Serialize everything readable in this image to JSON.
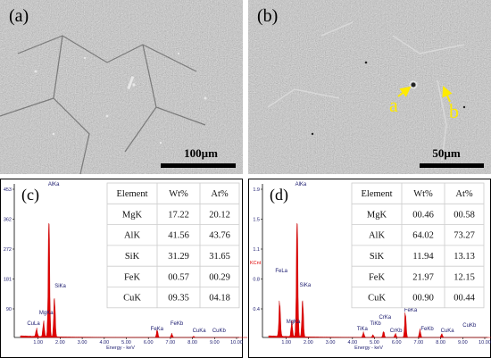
{
  "panels": [
    {
      "label": "(a)",
      "scale_bar": "100µm"
    },
    {
      "label": "(b)",
      "scale_bar": "50µm",
      "annotations": [
        "a",
        "b"
      ]
    },
    {
      "label": "(c)",
      "y_axis_ticks": [
        "453",
        "362",
        "272",
        "181",
        "90"
      ],
      "x_axis_ticks": [
        "1.00",
        "2.00",
        "3.00",
        "4.00",
        "5.00",
        "6.00",
        "7.00",
        "8.00",
        "9.00",
        "10.00"
      ],
      "x_axis_label": "Energy - keV",
      "peak_labels": [
        "AlKa",
        "SiKa",
        "MgKa",
        "CuLa",
        "FeKa",
        "FeKb",
        "CuKa",
        "CuKb"
      ],
      "table": {
        "header": [
          "Element",
          "Wt%",
          "At%"
        ],
        "rows": [
          [
            "MgK",
            "17.22",
            "20.12"
          ],
          [
            "AlK",
            "41.56",
            "43.76"
          ],
          [
            "SiK",
            "31.29",
            "31.65"
          ],
          [
            "FeK",
            "00.57",
            "00.29"
          ],
          [
            "CuK",
            "09.35",
            "04.18"
          ]
        ]
      }
    },
    {
      "label": "(d)",
      "y_axis_label": "KCnt",
      "y_axis_ticks": [
        "1.9",
        "1.5",
        "1.1",
        "0.8",
        "0.4"
      ],
      "x_axis_ticks": [
        "1.00",
        "2.00",
        "3.00",
        "4.00",
        "5.00",
        "6.00",
        "7.00",
        "8.00",
        "9.00",
        "10.00"
      ],
      "x_axis_label": "Energy - keV",
      "peak_labels": [
        "AlKa",
        "FeLa",
        "SiKa",
        "MgKa",
        "TiKa",
        "CrKa",
        "TiKb",
        "CrKb",
        "FeKa",
        "FeKb",
        "CuKa",
        "CuKb"
      ],
      "table": {
        "header": [
          "Element",
          "Wt%",
          "At%"
        ],
        "rows": [
          [
            "MgK",
            "00.46",
            "00.58"
          ],
          [
            "AlK",
            "64.02",
            "73.27"
          ],
          [
            "SiK",
            "11.94",
            "13.13"
          ],
          [
            "FeK",
            "21.97",
            "12.15"
          ],
          [
            "CuK",
            "00.90",
            "00.44"
          ]
        ]
      }
    }
  ]
}
